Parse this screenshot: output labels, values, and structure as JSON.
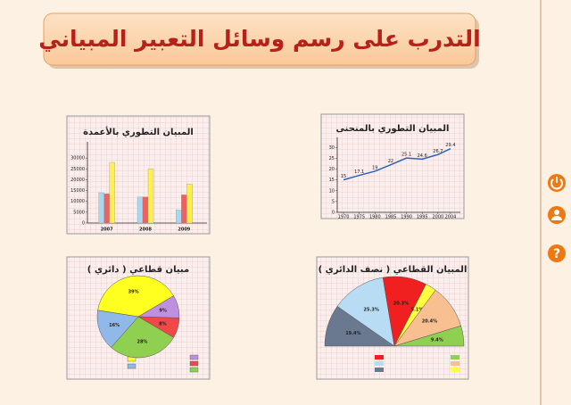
{
  "title": "التدرب على رسم وسائل التعبير المبياني",
  "bar_panel": {
    "title": "المبيان التطوري بالأعمدة",
    "categories": [
      "2007",
      "2008",
      "2009"
    ],
    "series": [
      {
        "color": "#a8d8f0",
        "values": [
          14000,
          12000,
          6000
        ]
      },
      {
        "color": "#f06060",
        "values": [
          13500,
          12000,
          13000
        ]
      },
      {
        "color": "#fff050",
        "values": [
          28000,
          25000,
          18000
        ]
      }
    ],
    "ylim": [
      0,
      35000
    ],
    "yticks": [
      0,
      5000,
      10000,
      15000,
      20000,
      25000,
      30000
    ]
  },
  "line_panel": {
    "title": "المبيان التطوري بالمنحنى",
    "x": [
      1970,
      1975,
      1980,
      1985,
      1990,
      1995,
      2000,
      2004
    ],
    "values": [
      15,
      17.1,
      19,
      22,
      25.1,
      24.6,
      26.7,
      29.4
    ],
    "color": "#2a62b8",
    "xlim": [
      1968,
      2006
    ],
    "xticks": [
      1970,
      1975,
      1980,
      1985,
      1990,
      1995,
      2000,
      2004
    ],
    "ylim": [
      0,
      33
    ],
    "yticks": [
      0,
      5,
      10,
      15,
      20,
      25,
      30
    ]
  },
  "pie_panel": {
    "title": "مبيان قطاعي ( دائري )",
    "values": [
      39,
      9,
      8,
      28,
      16
    ],
    "value_labels": [
      "39%",
      "9%",
      "8%",
      "28%",
      "16%"
    ],
    "colors": [
      "#ffff20",
      "#c090e0",
      "#f04848",
      "#90d050",
      "#90b8e8"
    ]
  },
  "semi_panel": {
    "title": "المبيان القطاعي ( نصف الدائري )",
    "values": [
      19.4,
      25.3,
      20.3,
      5.1,
      20.4,
      9.4
    ],
    "value_labels": [
      "19.4%",
      "25.3%",
      "20.3%",
      "5.1%",
      "20.4%",
      "9.4%"
    ],
    "colors": [
      "#6a7890",
      "#b8dcf4",
      "#f02020",
      "#ffff40",
      "#f8c090",
      "#90d050"
    ]
  }
}
